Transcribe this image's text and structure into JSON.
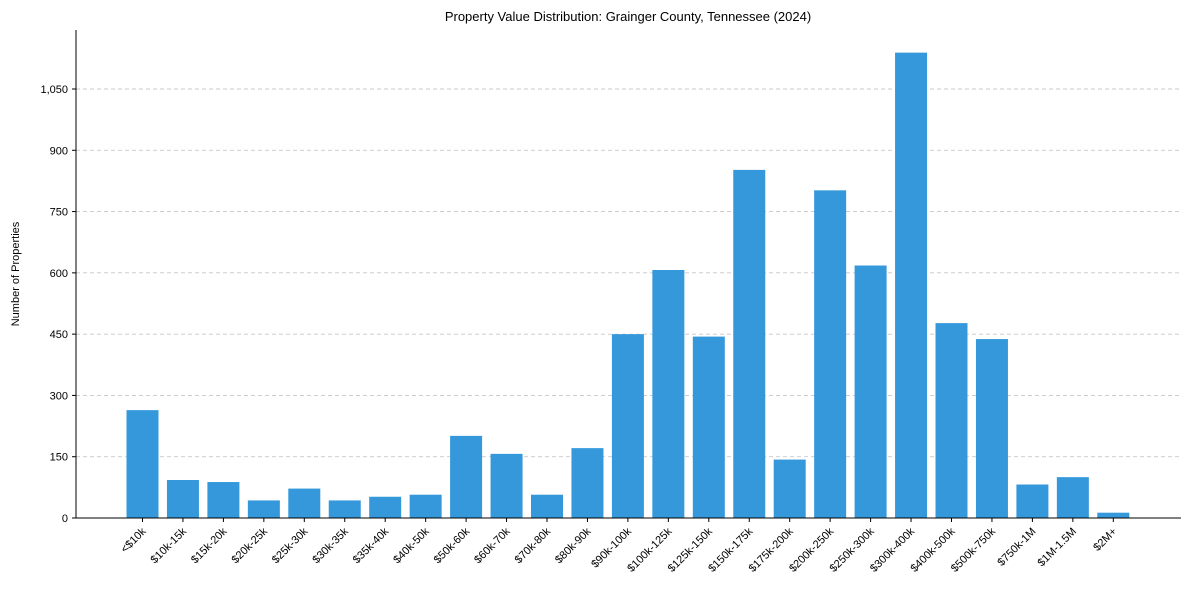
{
  "chart_data": {
    "type": "bar",
    "title": "Property Value Distribution: Grainger County, Tennessee (2024)",
    "xlabel": "",
    "ylabel": "Number of Properties",
    "ylim": [
      0,
      1200
    ],
    "yticks": [
      0,
      150,
      300,
      450,
      600,
      750,
      900,
      1050
    ],
    "ytick_labels": [
      "0",
      "150",
      "300",
      "450",
      "600",
      "750",
      "900",
      "1,050"
    ],
    "grid": "horizontal dashed",
    "bar_color": "#3498db",
    "categories": [
      "<$10k",
      "$10k-15k",
      "$15k-20k",
      "$20k-25k",
      "$25k-30k",
      "$30k-35k",
      "$35k-40k",
      "$40k-50k",
      "$50k-60k",
      "$60k-70k",
      "$70k-80k",
      "$80k-90k",
      "$90k-100k",
      "$100k-125k",
      "$125k-150k",
      "$150k-175k",
      "$175k-200k",
      "$200k-250k",
      "$250k-300k",
      "$300k-400k",
      "$400k-500k",
      "$500k-750k",
      "$750k-1M",
      "$1M-1.5M",
      "$2M+"
    ],
    "values": [
      264,
      93,
      88,
      43,
      72,
      43,
      52,
      57,
      201,
      157,
      57,
      171,
      450,
      607,
      444,
      852,
      143,
      802,
      618,
      1139,
      477,
      438,
      82,
      100,
      13
    ]
  }
}
